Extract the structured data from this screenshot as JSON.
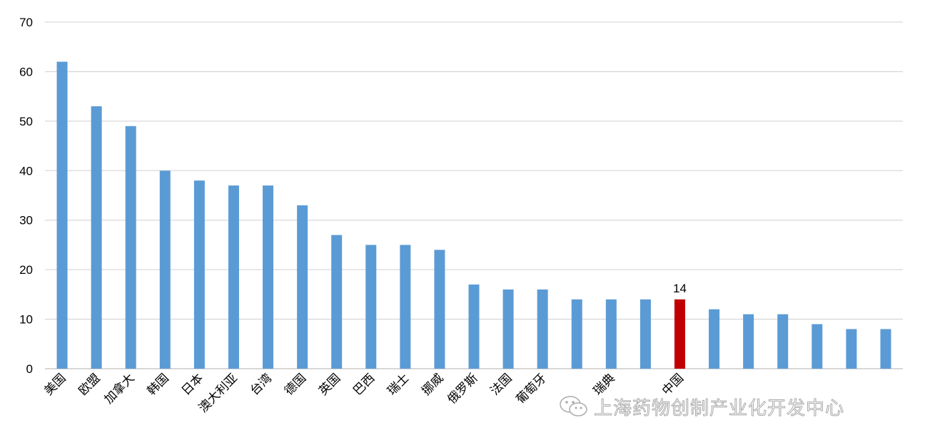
{
  "chart_data": {
    "type": "bar",
    "categories": [
      "美国",
      "欧盟",
      "加拿大",
      "韩国",
      "日本",
      "澳大利亚",
      "台湾",
      "德国",
      "英国",
      "巴西",
      "瑞士",
      "挪威",
      "俄罗斯",
      "法国",
      "葡萄牙",
      "",
      "瑞典",
      "",
      "中国",
      "",
      "",
      "",
      "",
      "",
      ""
    ],
    "values": [
      62,
      53,
      49,
      40,
      38,
      37,
      37,
      33,
      27,
      25,
      25,
      24,
      17,
      16,
      16,
      14,
      14,
      14,
      14,
      12,
      11,
      11,
      9,
      8,
      8
    ],
    "highlight_index": 18,
    "highlight_label": "14",
    "ylim": [
      0,
      70
    ],
    "yticks": [
      0,
      10,
      20,
      30,
      40,
      50,
      60,
      70
    ],
    "grid": true,
    "legend": "none",
    "colors": {
      "bar": "#5b9bd5",
      "highlight": "#c00000",
      "grid": "#d9d9d9",
      "axis": "#bfbfbf"
    }
  },
  "watermark": {
    "text": "上海药物创制产业化开发中心",
    "icon": "wechat-icon"
  }
}
